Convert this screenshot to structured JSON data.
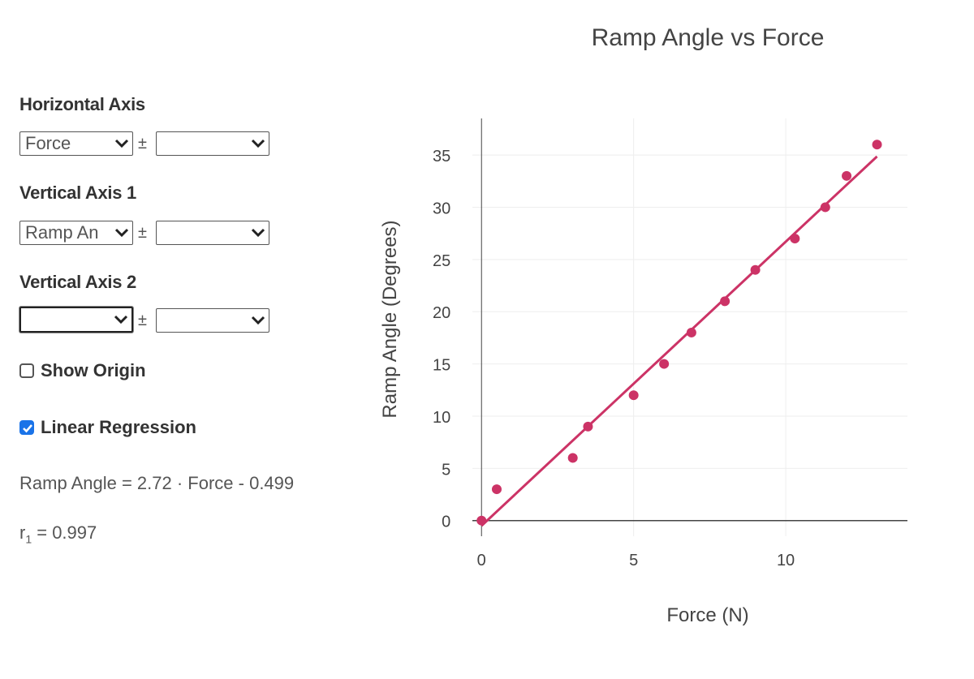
{
  "controls": {
    "horizontal_axis": {
      "heading": "Horizontal Axis",
      "value": "Force",
      "error_value": ""
    },
    "vertical_axis_1": {
      "heading": "Vertical Axis 1",
      "value": "Ramp An",
      "error_value": ""
    },
    "vertical_axis_2": {
      "heading": "Vertical Axis 2",
      "value": "",
      "error_value": ""
    },
    "pm_symbol": "±",
    "show_origin": {
      "label": "Show Origin",
      "checked": false
    },
    "linear_regression": {
      "label": "Linear Regression",
      "checked": true
    },
    "equation": "Ramp Angle = 2.72 · Force - 0.499",
    "r_label": "r",
    "r_sub": "1",
    "r_value": " = 0.997"
  },
  "colors": {
    "accent": "#cc3366",
    "checkbox": "#1a73e8"
  },
  "chart_data": {
    "type": "scatter",
    "title": "Ramp Angle vs Force",
    "xlabel": "Force (N)",
    "ylabel": "Ramp Angle (Degrees)",
    "xlim": [
      -0.3,
      14.0
    ],
    "ylim": [
      -1.5,
      38.5
    ],
    "x_ticks": [
      0,
      5,
      10
    ],
    "y_ticks": [
      0,
      5,
      10,
      15,
      20,
      25,
      30,
      35
    ],
    "grid": true,
    "series": [
      {
        "name": "Ramp Angle",
        "x": [
          0,
          0.5,
          3.0,
          3.5,
          5.0,
          6.0,
          6.9,
          8.0,
          9.0,
          10.3,
          11.3,
          12.0,
          13.0
        ],
        "y": [
          0,
          3,
          6,
          9,
          12,
          15,
          18,
          21,
          24,
          27,
          30,
          33,
          36
        ]
      }
    ],
    "regression": {
      "slope": 2.72,
      "intercept": -0.499,
      "x_range": [
        0,
        13.0
      ]
    }
  }
}
